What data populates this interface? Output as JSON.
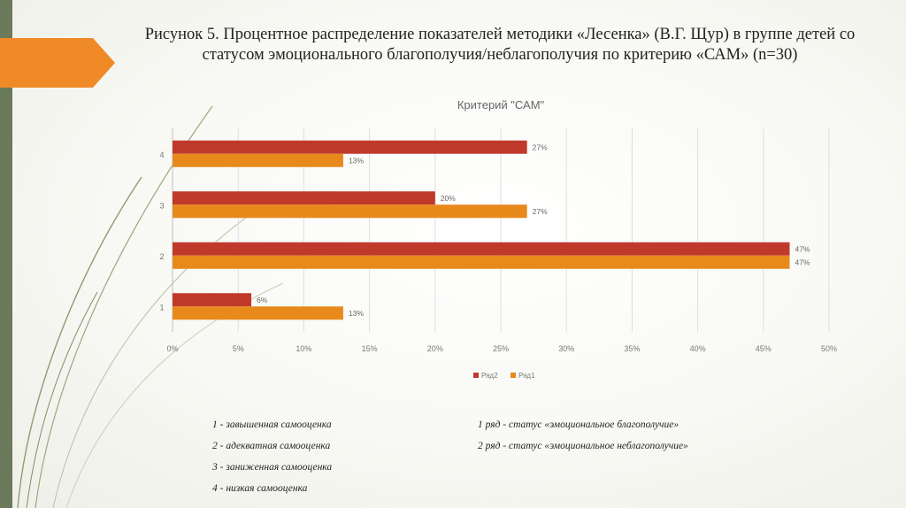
{
  "slide": {
    "title": "Рисунок 5. Процентное распределение показателей методики «Лесенка» (В.Г. Щур) в группе детей со статусом эмоционального благополучия/неблагополучия по критерию «САМ» (n=30)",
    "notes_left": [
      "1 - завышенная самооценка",
      "2 - адекватная самооценка",
      "3 - заниженная самооценка",
      "4 - низкая самооценка"
    ],
    "notes_right": [
      "1 ряд -  статус «эмоциональное благополучие»",
      "2 ряд -  статус «эмоциональное неблагополучие»"
    ],
    "accent_color": "#ef8a26",
    "sidebar_color": "#6b7a5a"
  },
  "chart_data": {
    "type": "bar",
    "orientation": "horizontal",
    "title": "Критерий \"САМ\"",
    "categories": [
      "1",
      "2",
      "3",
      "4"
    ],
    "series": [
      {
        "name": "Ряд2",
        "values": [
          6,
          47,
          20,
          27
        ],
        "labels": [
          "6%",
          "47%",
          "20%",
          "27%"
        ],
        "color": "#c0392b"
      },
      {
        "name": "Ряд1",
        "values": [
          13,
          47,
          27,
          13
        ],
        "labels": [
          "13%",
          "47%",
          "27%",
          "13%"
        ],
        "color": "#e8891c"
      }
    ],
    "xlim": [
      0,
      50
    ],
    "xticks": [
      0,
      5,
      10,
      15,
      20,
      25,
      30,
      35,
      40,
      45,
      50
    ],
    "xtick_labels": [
      "0%",
      "5%",
      "10%",
      "15%",
      "20%",
      "25%",
      "30%",
      "35%",
      "40%",
      "45%",
      "50%"
    ],
    "grid": true,
    "legend_position": "bottom"
  }
}
